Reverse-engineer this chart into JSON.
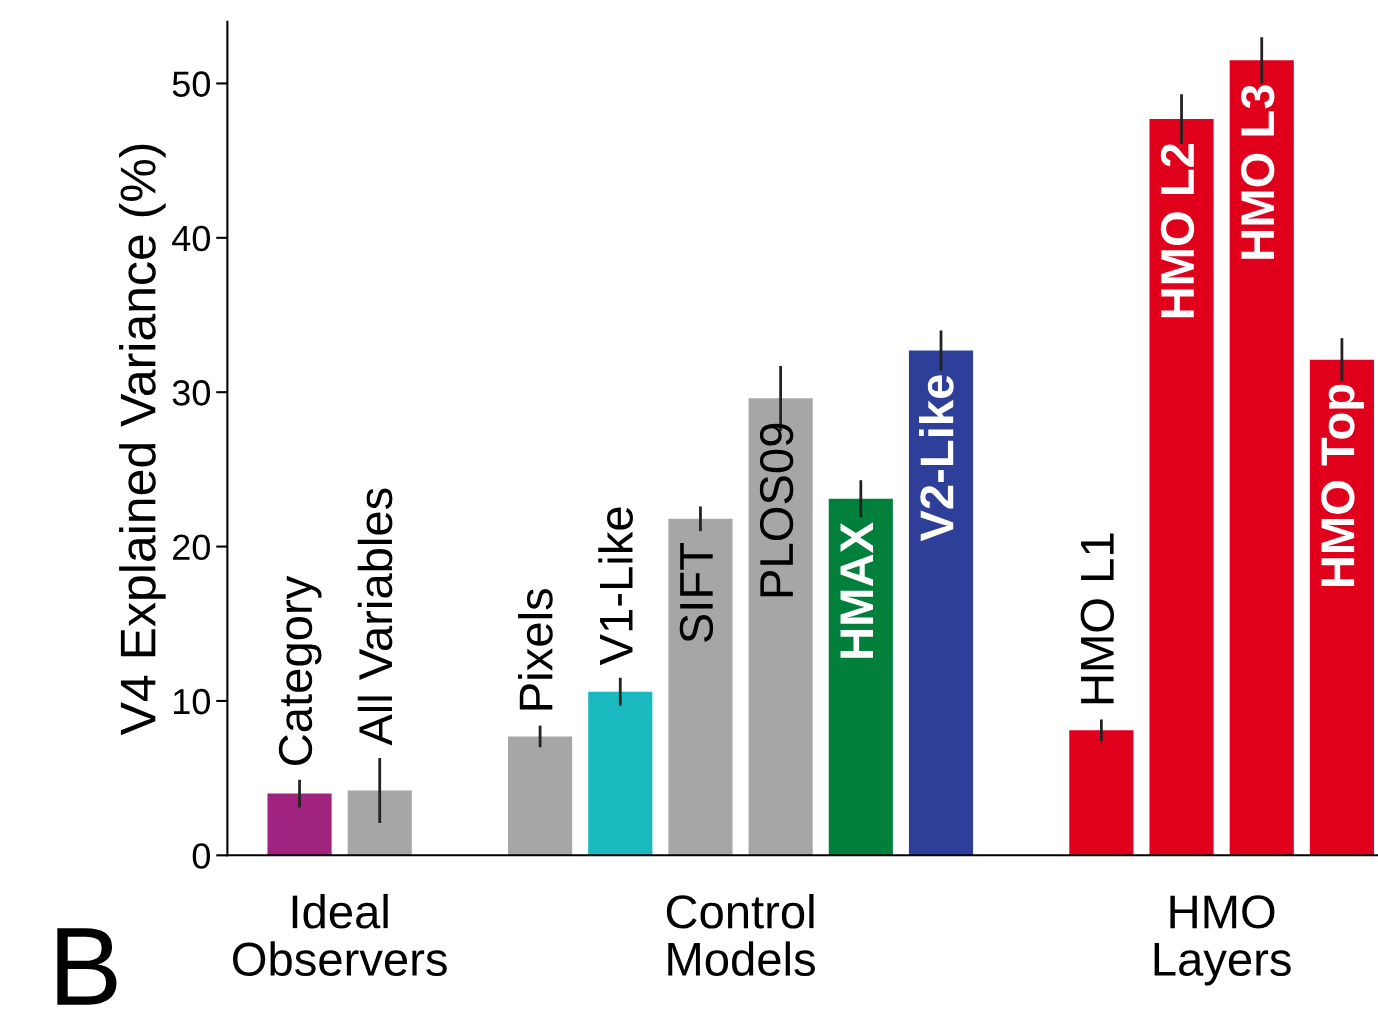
{
  "chart_data": {
    "type": "bar",
    "ylabel": "V4 Explained Variance (%)",
    "categories": [
      "Category",
      "All Variables",
      null,
      "Pixels",
      "V1-Like",
      "SIFT",
      "PLOS09",
      "HMAX",
      "V2-Like",
      null,
      "HMO L1",
      "HMO L2",
      "HMO L3",
      "HMO Top"
    ],
    "values": [
      4.0,
      4.2,
      null,
      7.7,
      10.6,
      21.8,
      29.6,
      23.1,
      32.7,
      null,
      8.1,
      47.7,
      51.5,
      32.1
    ],
    "errors": [
      0.9,
      2.1,
      null,
      0.7,
      0.9,
      0.8,
      2.1,
      1.2,
      1.3,
      null,
      0.7,
      1.6,
      1.5,
      1.4
    ],
    "colors": [
      "#a0237f",
      "#a6a6a6",
      null,
      "#a6a6a6",
      "#1ab8bf",
      "#a6a6a6",
      "#a6a6a6",
      "#00803a",
      "#2e3f99",
      null,
      "#e0001b",
      "#e0001b",
      "#e0001b",
      "#e0001b"
    ],
    "ylim": [
      0,
      54
    ],
    "yticks": [
      0,
      10,
      20,
      30,
      40,
      50
    ],
    "grid": false,
    "legend": false,
    "annotations": [
      "Ideal\nObservers",
      "Control\nModels",
      "HMO\nLayers",
      "B"
    ]
  }
}
